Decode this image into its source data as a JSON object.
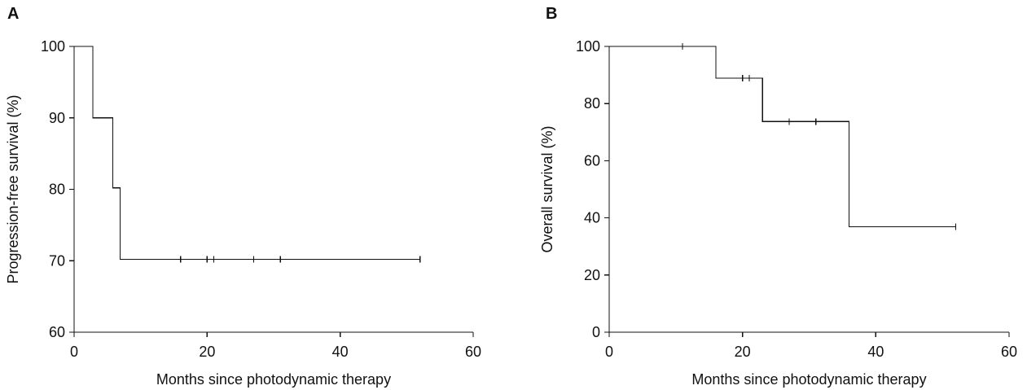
{
  "panels": {
    "a": {
      "label": "A"
    },
    "b": {
      "label": "B"
    }
  },
  "chart_data": [
    {
      "type": "line",
      "panel": "A",
      "step": true,
      "xlabel": "Months since photodynamic therapy",
      "ylabel": "Progression-free survival (%)",
      "xlim": [
        0,
        60
      ],
      "ylim": [
        60,
        100
      ],
      "xticks": [
        0,
        20,
        40,
        60
      ],
      "yticks": [
        60,
        70,
        80,
        90,
        100
      ],
      "series": [
        {
          "x": [
            0,
            2.8,
            5.8,
            6.9,
            52
          ],
          "y": [
            100,
            90,
            80.2,
            70.2,
            70.2
          ]
        }
      ],
      "censored": {
        "x": [
          16,
          20,
          21,
          27,
          31,
          52
        ],
        "y": [
          70.2,
          70.2,
          70.2,
          70.2,
          70.2,
          70.2
        ]
      },
      "grid": false
    },
    {
      "type": "line",
      "panel": "B",
      "step": true,
      "xlabel": "Months since photodynamic therapy",
      "ylabel": "Overall survival (%)",
      "xlim": [
        0,
        60
      ],
      "ylim": [
        0,
        100
      ],
      "xticks": [
        0,
        20,
        40,
        60
      ],
      "yticks": [
        0,
        20,
        40,
        60,
        80,
        100
      ],
      "series": [
        {
          "x": [
            0,
            16,
            23,
            36,
            52
          ],
          "y": [
            100,
            88.9,
            73.7,
            36.9,
            36.9
          ]
        }
      ],
      "censored": {
        "x": [
          11,
          20,
          21,
          27,
          31,
          52
        ],
        "y": [
          100,
          88.9,
          88.9,
          73.7,
          73.7,
          36.9
        ]
      },
      "grid": false
    }
  ]
}
